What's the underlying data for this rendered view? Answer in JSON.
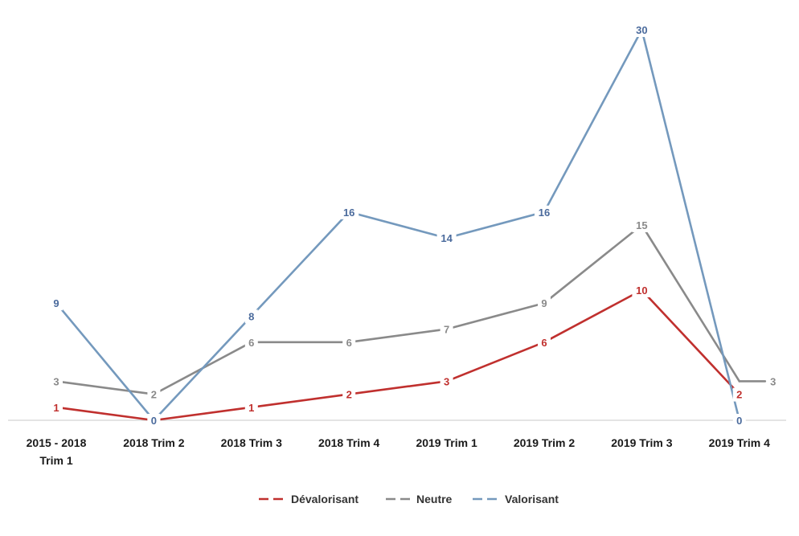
{
  "chart_data": {
    "type": "line",
    "categories": [
      [
        "2015 - 2018",
        "Trim 1"
      ],
      [
        "2018 Trim 2"
      ],
      [
        "2018 Trim 3"
      ],
      [
        "2018 Trim 4"
      ],
      [
        "2019 Trim 1"
      ],
      [
        "2019 Trim 2"
      ],
      [
        "2019 Trim 3"
      ],
      [
        "2019 Trim 4"
      ]
    ],
    "series": [
      {
        "name": "Dévalorisant",
        "color": "#c0302e",
        "values": [
          1,
          0,
          1,
          2,
          3,
          6,
          10,
          2
        ]
      },
      {
        "name": "Neutre",
        "color": "#8a8a8a",
        "values": [
          3,
          2,
          6,
          6,
          7,
          9,
          15,
          3
        ]
      },
      {
        "name": "Valorisant",
        "color": "#7499bd",
        "label_color": "#4a6a9c",
        "values": [
          9,
          0,
          8,
          16,
          14,
          16,
          30,
          0
        ]
      }
    ],
    "ylim": [
      0,
      30
    ],
    "grid": false,
    "data_labels": true,
    "legend": "bottom-center",
    "title": "",
    "xlabel": "",
    "ylabel": ""
  }
}
